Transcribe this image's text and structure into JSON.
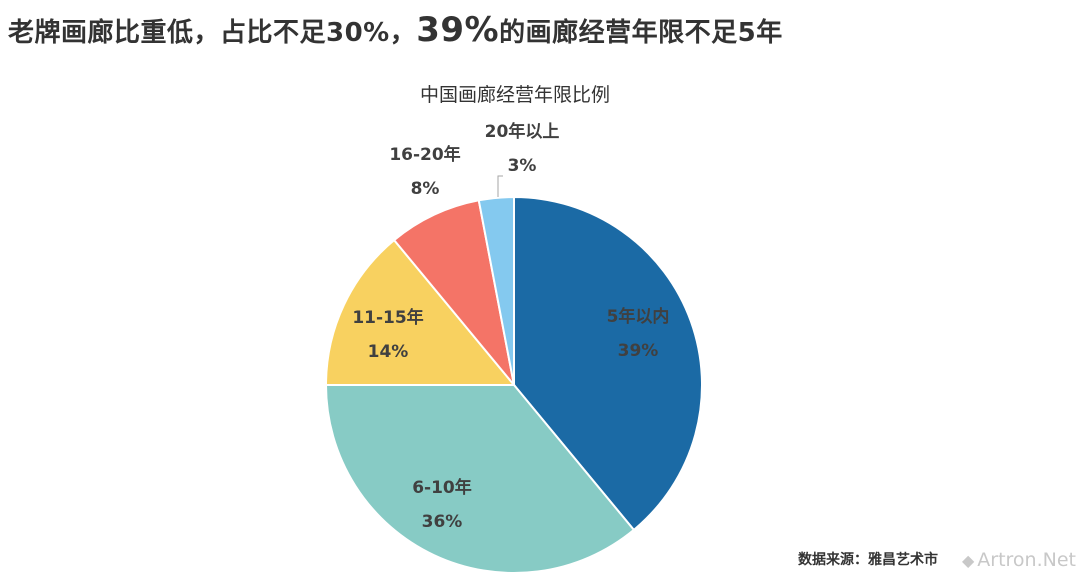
{
  "headline": {
    "pre": "老牌画廊比重低，占比不足30%，",
    "emphasis": "39%",
    "post": "的画廊经营年限不足5年"
  },
  "source": "数据来源：雅昌艺术市",
  "watermark": "Artron.Net",
  "chart_data": {
    "type": "pie",
    "title": "中国画廊经营年限比例",
    "slices": [
      {
        "label": "5年以内",
        "value": 39,
        "display": "39%",
        "color": "#1b6aa5"
      },
      {
        "label": "6-10年",
        "value": 36,
        "display": "36%",
        "color": "#87cbc5"
      },
      {
        "label": "11-15年",
        "value": 14,
        "display": "14%",
        "color": "#f8d160"
      },
      {
        "label": "16-20年",
        "value": 8,
        "display": "8%",
        "color": "#f47467"
      },
      {
        "label": "20年以上",
        "value": 3,
        "display": "3%",
        "color": "#84c9ef"
      }
    ]
  }
}
